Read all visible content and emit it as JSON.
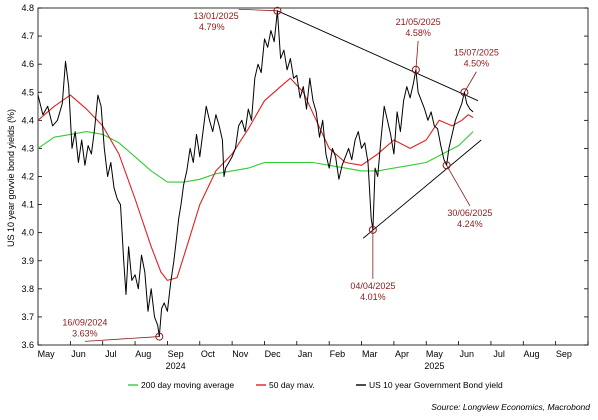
{
  "chart_data": {
    "type": "line",
    "ylabel": "US 10 year govvie bond yields (%)",
    "ylim": [
      3.6,
      4.8
    ],
    "y_ticks": [
      "3.6",
      "3.7",
      "3.8",
      "3.9",
      "4.0",
      "4.1",
      "4.2",
      "4.3",
      "4.4",
      "4.5",
      "4.6",
      "4.7",
      "4.8"
    ],
    "x_months": [
      "May",
      "Jun",
      "Jul",
      "Aug",
      "Sep",
      "Oct",
      "Nov",
      "Dec",
      "Jan",
      "Feb",
      "Mar",
      "Apr",
      "May",
      "Jun",
      "Jul",
      "Aug",
      "Sep"
    ],
    "x_years": [
      {
        "label": "2024",
        "month_index": 4
      },
      {
        "label": "2025",
        "month_index": 12
      }
    ],
    "colors": {
      "yield": "#000000",
      "ma50": "#e02020",
      "ma200": "#33cc33",
      "trend": "#000000",
      "annotation": "#8b1a1a"
    },
    "series": [
      {
        "name": "US 10 year Government Bond yield",
        "key": "yield",
        "points": [
          [
            0.0,
            4.49
          ],
          [
            0.15,
            4.42
          ],
          [
            0.3,
            4.45
          ],
          [
            0.45,
            4.38
          ],
          [
            0.6,
            4.4
          ],
          [
            0.75,
            4.46
          ],
          [
            0.85,
            4.61
          ],
          [
            0.95,
            4.52
          ],
          [
            1.05,
            4.3
          ],
          [
            1.15,
            4.36
          ],
          [
            1.25,
            4.25
          ],
          [
            1.35,
            4.33
          ],
          [
            1.45,
            4.24
          ],
          [
            1.55,
            4.31
          ],
          [
            1.65,
            4.28
          ],
          [
            1.75,
            4.37
          ],
          [
            1.85,
            4.49
          ],
          [
            1.95,
            4.45
          ],
          [
            2.05,
            4.3
          ],
          [
            2.15,
            4.2
          ],
          [
            2.25,
            4.25
          ],
          [
            2.35,
            4.16
          ],
          [
            2.45,
            4.12
          ],
          [
            2.55,
            4.1
          ],
          [
            2.65,
            3.9
          ],
          [
            2.72,
            3.78
          ],
          [
            2.8,
            3.95
          ],
          [
            2.9,
            3.83
          ],
          [
            3.0,
            3.85
          ],
          [
            3.1,
            3.8
          ],
          [
            3.2,
            3.92
          ],
          [
            3.3,
            3.86
          ],
          [
            3.4,
            3.72
          ],
          [
            3.5,
            3.8
          ],
          [
            3.6,
            3.7
          ],
          [
            3.7,
            3.67
          ],
          [
            3.75,
            3.63
          ],
          [
            3.82,
            3.73
          ],
          [
            3.9,
            3.75
          ],
          [
            4.0,
            3.72
          ],
          [
            4.1,
            3.82
          ],
          [
            4.2,
            3.9
          ],
          [
            4.28,
            3.98
          ],
          [
            4.35,
            4.05
          ],
          [
            4.42,
            4.1
          ],
          [
            4.5,
            4.17
          ],
          [
            4.6,
            4.22
          ],
          [
            4.7,
            4.3
          ],
          [
            4.8,
            4.25
          ],
          [
            4.9,
            4.35
          ],
          [
            5.0,
            4.27
          ],
          [
            5.1,
            4.36
          ],
          [
            5.2,
            4.45
          ],
          [
            5.3,
            4.4
          ],
          [
            5.4,
            4.36
          ],
          [
            5.5,
            4.42
          ],
          [
            5.6,
            4.38
          ],
          [
            5.7,
            4.33
          ],
          [
            5.75,
            4.2
          ],
          [
            5.8,
            4.23
          ],
          [
            5.9,
            4.25
          ],
          [
            6.0,
            4.27
          ],
          [
            6.1,
            4.3
          ],
          [
            6.2,
            4.38
          ],
          [
            6.3,
            4.4
          ],
          [
            6.4,
            4.36
          ],
          [
            6.5,
            4.44
          ],
          [
            6.6,
            4.4
          ],
          [
            6.7,
            4.55
          ],
          [
            6.8,
            4.6
          ],
          [
            6.9,
            4.57
          ],
          [
            7.0,
            4.69
          ],
          [
            7.1,
            4.66
          ],
          [
            7.2,
            4.72
          ],
          [
            7.3,
            4.68
          ],
          [
            7.4,
            4.79
          ],
          [
            7.5,
            4.62
          ],
          [
            7.6,
            4.65
          ],
          [
            7.7,
            4.58
          ],
          [
            7.8,
            4.62
          ],
          [
            7.9,
            4.55
          ],
          [
            8.0,
            4.56
          ],
          [
            8.1,
            4.48
          ],
          [
            8.2,
            4.52
          ],
          [
            8.3,
            4.44
          ],
          [
            8.4,
            4.55
          ],
          [
            8.5,
            4.47
          ],
          [
            8.6,
            4.43
          ],
          [
            8.7,
            4.34
          ],
          [
            8.8,
            4.4
          ],
          [
            8.9,
            4.28
          ],
          [
            9.0,
            4.23
          ],
          [
            9.1,
            4.3
          ],
          [
            9.2,
            4.27
          ],
          [
            9.3,
            4.19
          ],
          [
            9.4,
            4.24
          ],
          [
            9.5,
            4.27
          ],
          [
            9.6,
            4.3
          ],
          [
            9.7,
            4.26
          ],
          [
            9.8,
            4.33
          ],
          [
            9.9,
            4.36
          ],
          [
            10.0,
            4.3
          ],
          [
            10.1,
            4.32
          ],
          [
            10.2,
            4.25
          ],
          [
            10.3,
            4.05
          ],
          [
            10.35,
            4.01
          ],
          [
            10.42,
            4.23
          ],
          [
            10.5,
            4.2
          ],
          [
            10.6,
            4.33
          ],
          [
            10.7,
            4.45
          ],
          [
            10.8,
            4.4
          ],
          [
            10.9,
            4.35
          ],
          [
            11.0,
            4.28
          ],
          [
            11.1,
            4.43
          ],
          [
            11.2,
            4.36
          ],
          [
            11.3,
            4.47
          ],
          [
            11.4,
            4.52
          ],
          [
            11.5,
            4.48
          ],
          [
            11.6,
            4.53
          ],
          [
            11.68,
            4.58
          ],
          [
            11.75,
            4.5
          ],
          [
            11.85,
            4.47
          ],
          [
            11.95,
            4.44
          ],
          [
            12.05,
            4.4
          ],
          [
            12.15,
            4.43
          ],
          [
            12.25,
            4.38
          ],
          [
            12.35,
            4.37
          ],
          [
            12.45,
            4.31
          ],
          [
            12.55,
            4.26
          ],
          [
            12.63,
            4.24
          ],
          [
            12.7,
            4.3
          ],
          [
            12.8,
            4.35
          ],
          [
            12.9,
            4.4
          ],
          [
            13.0,
            4.43
          ],
          [
            13.1,
            4.46
          ],
          [
            13.18,
            4.5
          ],
          [
            13.25,
            4.46
          ],
          [
            13.35,
            4.44
          ],
          [
            13.45,
            4.43
          ]
        ]
      },
      {
        "name": "50 day mav.",
        "key": "ma50",
        "points": [
          [
            0.0,
            4.4
          ],
          [
            0.5,
            4.45
          ],
          [
            1.0,
            4.49
          ],
          [
            1.5,
            4.44
          ],
          [
            2.0,
            4.38
          ],
          [
            2.5,
            4.28
          ],
          [
            3.0,
            4.12
          ],
          [
            3.5,
            3.95
          ],
          [
            3.8,
            3.86
          ],
          [
            4.0,
            3.83
          ],
          [
            4.3,
            3.84
          ],
          [
            4.6,
            3.95
          ],
          [
            5.0,
            4.1
          ],
          [
            5.5,
            4.22
          ],
          [
            6.0,
            4.28
          ],
          [
            6.5,
            4.37
          ],
          [
            7.0,
            4.47
          ],
          [
            7.5,
            4.52
          ],
          [
            7.8,
            4.55
          ],
          [
            8.2,
            4.5
          ],
          [
            8.6,
            4.4
          ],
          [
            9.0,
            4.3
          ],
          [
            9.5,
            4.25
          ],
          [
            10.0,
            4.24
          ],
          [
            10.5,
            4.28
          ],
          [
            11.0,
            4.33
          ],
          [
            11.5,
            4.3
          ],
          [
            12.0,
            4.33
          ],
          [
            12.4,
            4.4
          ],
          [
            12.8,
            4.38
          ],
          [
            13.1,
            4.4
          ],
          [
            13.3,
            4.42
          ],
          [
            13.45,
            4.41
          ]
        ]
      },
      {
        "name": "200 day moving average",
        "key": "ma200",
        "points": [
          [
            0.0,
            4.3
          ],
          [
            0.5,
            4.34
          ],
          [
            1.0,
            4.35
          ],
          [
            1.5,
            4.36
          ],
          [
            2.0,
            4.35
          ],
          [
            2.5,
            4.32
          ],
          [
            3.0,
            4.27
          ],
          [
            3.5,
            4.22
          ],
          [
            4.0,
            4.18
          ],
          [
            4.5,
            4.18
          ],
          [
            5.0,
            4.19
          ],
          [
            5.5,
            4.21
          ],
          [
            6.0,
            4.22
          ],
          [
            6.5,
            4.23
          ],
          [
            7.0,
            4.25
          ],
          [
            7.5,
            4.25
          ],
          [
            8.0,
            4.25
          ],
          [
            8.5,
            4.25
          ],
          [
            9.0,
            4.24
          ],
          [
            9.5,
            4.23
          ],
          [
            10.0,
            4.22
          ],
          [
            10.5,
            4.22
          ],
          [
            11.0,
            4.23
          ],
          [
            11.5,
            4.24
          ],
          [
            12.0,
            4.25
          ],
          [
            12.5,
            4.28
          ],
          [
            13.0,
            4.31
          ],
          [
            13.45,
            4.36
          ]
        ]
      }
    ],
    "trendlines": [
      {
        "from": [
          7.4,
          4.79
        ],
        "to": [
          13.6,
          4.47
        ]
      },
      {
        "from": [
          10.05,
          3.98
        ],
        "to": [
          13.7,
          4.33
        ]
      }
    ],
    "annotations": [
      {
        "date": "13/01/2025",
        "value": "4.79%",
        "point": [
          7.4,
          4.79
        ],
        "label_at": [
          6.2,
          4.76
        ],
        "anchor": "end"
      },
      {
        "date": "21/05/2025",
        "value": "4.58%",
        "point": [
          11.68,
          4.58
        ],
        "label_at": [
          11.75,
          4.74
        ],
        "anchor": "middle"
      },
      {
        "date": "15/07/2025",
        "value": "4.50%",
        "point": [
          13.18,
          4.5
        ],
        "label_at": [
          13.55,
          4.63
        ],
        "anchor": "middle"
      },
      {
        "date": "30/06/2025",
        "value": "4.24%",
        "point": [
          12.63,
          4.24
        ],
        "label_at": [
          13.35,
          4.06
        ],
        "anchor": "middle"
      },
      {
        "date": "04/04/2025",
        "value": "4.01%",
        "point": [
          10.35,
          4.01
        ],
        "label_at": [
          10.35,
          3.8
        ],
        "anchor": "middle"
      },
      {
        "date": "16/09/2024",
        "value": "3.63%",
        "point": [
          3.75,
          3.63
        ],
        "label_at": [
          1.45,
          3.67
        ],
        "anchor": "middle"
      }
    ],
    "legend": [
      {
        "key": "ma200",
        "label": "200 day moving average"
      },
      {
        "key": "ma50",
        "label": "50 day mav."
      },
      {
        "key": "yield",
        "label": "US 10 year Government Bond yield"
      }
    ],
    "source": "Source: Longview Economics, Macrobond"
  }
}
